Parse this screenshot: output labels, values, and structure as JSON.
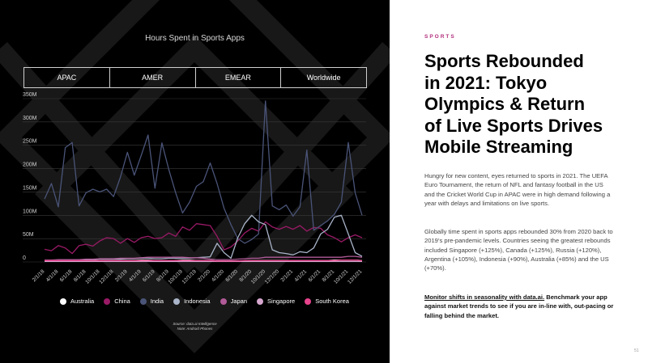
{
  "chart": {
    "title": "Hours Spent in Sports Apps",
    "tabs": [
      "APAC",
      "AMER",
      "EMEAR",
      "Worldwide"
    ],
    "selected_tab": "",
    "source_line1": "Source: data.ai Intelligence",
    "source_line2": "Note: Android Phones"
  },
  "chart_data": {
    "type": "line",
    "title": "Hours Spent in Sports Apps",
    "xlabel": "",
    "ylabel": "",
    "ylim": [
      0,
      350
    ],
    "y_ticks": [
      "0",
      "50M",
      "100M",
      "150M",
      "200M",
      "250M",
      "300M",
      "350M"
    ],
    "x": [
      "2/1/18",
      "3/1/18",
      "4/1/18",
      "5/1/18",
      "6/1/18",
      "7/1/18",
      "8/1/18",
      "9/1/18",
      "10/1/18",
      "11/1/18",
      "12/1/18",
      "1/1/19",
      "2/1/19",
      "3/1/19",
      "4/1/19",
      "5/1/19",
      "6/1/19",
      "7/1/19",
      "8/1/19",
      "9/1/19",
      "10/1/19",
      "11/1/19",
      "12/1/19",
      "1/1/20",
      "2/1/20",
      "3/1/20",
      "4/1/20",
      "5/1/20",
      "6/1/20",
      "7/1/20",
      "8/1/20",
      "9/1/20",
      "10/1/20",
      "11/1/20",
      "12/1/20",
      "1/1/21",
      "2/1/21",
      "3/1/21",
      "4/1/21",
      "5/1/21",
      "6/1/21",
      "7/1/21",
      "8/1/21",
      "9/1/21",
      "10/1/21",
      "11/1/21",
      "12/1/21"
    ],
    "x_tick_labels": [
      "2/1/18",
      "4/1/18",
      "6/1/18",
      "8/1/18",
      "10/1/18",
      "12/1/18",
      "2/1/19",
      "4/1/19",
      "6/1/19",
      "8/1/19",
      "10/1/19",
      "12/1/19",
      "2/1/20",
      "4/1/20",
      "6/1/20",
      "8/1/20",
      "10/1/20",
      "12/1/20",
      "2/1/21",
      "4/1/21",
      "6/1/21",
      "8/1/21",
      "10/1/21",
      "12/1/21"
    ],
    "series": [
      {
        "name": "Australia",
        "color": "#ffffff",
        "values": [
          2,
          2,
          3,
          2,
          2,
          3,
          3,
          3,
          3,
          3,
          3,
          3,
          3,
          3,
          4,
          4,
          3,
          3,
          3,
          3,
          4,
          4,
          3,
          3,
          3,
          2,
          2,
          2,
          2,
          2,
          3,
          3,
          3,
          3,
          3,
          3,
          3,
          3,
          3,
          3,
          3,
          3,
          4,
          4,
          4,
          4,
          3
        ]
      },
      {
        "name": "China",
        "color": "#9a1a66",
        "values": [
          27,
          24,
          35,
          30,
          18,
          35,
          38,
          34,
          45,
          52,
          50,
          40,
          50,
          42,
          52,
          55,
          50,
          52,
          62,
          55,
          75,
          68,
          82,
          80,
          78,
          55,
          26,
          32,
          45,
          62,
          72,
          66,
          86,
          75,
          70,
          76,
          70,
          78,
          66,
          74,
          72,
          58,
          52,
          43,
          52,
          58,
          52
        ]
      },
      {
        "name": "India",
        "color": "#4a5478",
        "values": [
          135,
          168,
          118,
          245,
          256,
          120,
          148,
          156,
          150,
          156,
          140,
          182,
          235,
          186,
          228,
          272,
          158,
          255,
          198,
          148,
          105,
          128,
          162,
          172,
          212,
          168,
          115,
          80,
          50,
          40,
          48,
          60,
          345,
          120,
          112,
          122,
          98,
          118,
          240,
          68,
          78,
          88,
          102,
          128,
          256,
          148,
          100
        ]
      },
      {
        "name": "Indonesia",
        "color": "#a9b4c8",
        "values": [
          3,
          4,
          4,
          4,
          5,
          4,
          5,
          5,
          6,
          6,
          6,
          6,
          7,
          7,
          8,
          8,
          7,
          7,
          8,
          8,
          8,
          8,
          9,
          10,
          11,
          40,
          20,
          8,
          52,
          82,
          100,
          86,
          80,
          26,
          20,
          18,
          15,
          22,
          20,
          30,
          60,
          70,
          96,
          100,
          60,
          20,
          12
        ]
      },
      {
        "name": "Japan",
        "color": "#b05a98",
        "values": [
          4,
          4,
          5,
          5,
          5,
          5,
          6,
          6,
          7,
          7,
          7,
          8,
          8,
          8,
          9,
          10,
          10,
          10,
          10,
          10,
          10,
          9,
          9,
          8,
          6,
          5,
          5,
          5,
          6,
          7,
          8,
          8,
          10,
          10,
          10,
          10,
          10,
          10,
          10,
          10,
          10,
          10,
          10,
          10,
          12,
          12,
          10
        ]
      },
      {
        "name": "Singapore",
        "color": "#d6a7cf",
        "values": [
          1,
          1,
          1,
          1,
          1,
          1,
          1,
          1,
          1,
          1,
          1,
          1,
          1,
          1,
          1,
          1,
          1,
          1,
          1,
          1,
          1,
          1,
          1,
          1,
          1,
          1,
          1,
          1,
          1,
          1,
          1,
          1,
          1,
          1,
          1,
          1,
          1,
          1,
          1,
          1,
          1,
          1,
          1,
          1,
          1,
          1,
          1
        ]
      },
      {
        "name": "South Korea",
        "color": "#e8438d",
        "values": [
          3,
          3,
          3,
          3,
          3,
          3,
          3,
          3,
          3,
          3,
          3,
          3,
          3,
          3,
          3,
          3,
          3,
          3,
          3,
          3,
          3,
          3,
          3,
          3,
          3,
          2,
          2,
          2,
          2,
          3,
          3,
          3,
          3,
          3,
          3,
          3,
          3,
          3,
          3,
          3,
          3,
          3,
          3,
          4,
          4,
          4,
          3
        ]
      }
    ],
    "grid": true,
    "legend": "bottom"
  },
  "article": {
    "kicker": "SPORTS",
    "headline_lines": [
      "Sports Rebounded",
      "in 2021: Tokyo",
      "Olympics & Return",
      "of Live Sports Drives",
      "Mobile Streaming"
    ],
    "paragraph1": "Hungry for new content, eyes returned to sports in 2021. The UEFA Euro Tournament, the return of NFL and fantasy football in the US and the Cricket World Cup in APAC were in high demand following a year with delays and limitations on live sports.",
    "paragraph2": "Globally time spent in sports apps rebounded 30% from 2020 back to 2019’s pre-pandemic levels. Countries seeing the greatest rebounds included Singapore (+125%), Canada (+125%), Russia (+120%), Argentina (+105%), Indonesia (+90%), Australia (+85%) and the US (+70%).",
    "cta_link": "Monitor shifts in seasonality with data.ai.",
    "cta_rest": " Benchmark your app against market trends to see if you are in-line with, out-pacing or falling behind the market.",
    "page_number": "51"
  }
}
